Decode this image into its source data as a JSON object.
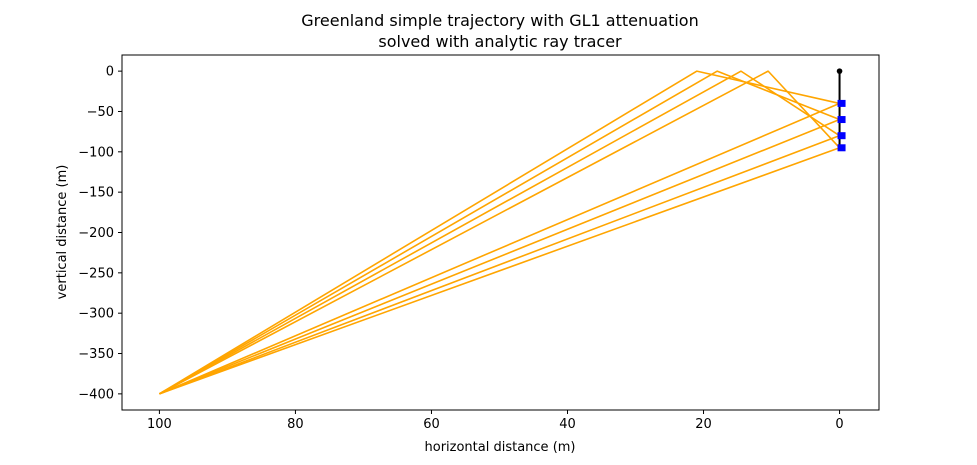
{
  "chart_data": {
    "type": "line",
    "title": "Greenland simple trajectory with GL1 attenuation",
    "subtitle": "solved with analytic ray tracer",
    "xlabel": "horizontal distance (m)",
    "ylabel": "vertical distance (m)",
    "xlim": [
      105.5,
      -5.8
    ],
    "ylim": [
      -420,
      20
    ],
    "x_inverted": true,
    "xticks": [
      100,
      80,
      60,
      40,
      20,
      0
    ],
    "yticks": [
      0,
      -50,
      -100,
      -150,
      -200,
      -250,
      -300,
      -350,
      -400
    ],
    "grid": false,
    "ray_color": "#FFA500",
    "receiver_color": "#0000FF",
    "string_color": "#000000",
    "source": {
      "x": 100,
      "y": -400
    },
    "string": {
      "x": 0,
      "top": 0,
      "bottom": -95
    },
    "receivers": [
      {
        "x": 0,
        "y": -40
      },
      {
        "x": 0,
        "y": -60
      },
      {
        "x": 0,
        "y": -80
      },
      {
        "x": 0,
        "y": -95
      }
    ],
    "series": [
      {
        "points": [
          [
            100,
            -400
          ],
          [
            0,
            -40
          ]
        ]
      },
      {
        "points": [
          [
            100,
            -400
          ],
          [
            0,
            -60
          ]
        ]
      },
      {
        "points": [
          [
            100,
            -400
          ],
          [
            0,
            -80
          ]
        ]
      },
      {
        "points": [
          [
            100,
            -400
          ],
          [
            0,
            -95
          ]
        ]
      },
      {
        "points": [
          [
            100,
            -400
          ],
          [
            21,
            0
          ],
          [
            0,
            -40
          ]
        ]
      },
      {
        "points": [
          [
            100,
            -400
          ],
          [
            18,
            0
          ],
          [
            0,
            -60
          ]
        ]
      },
      {
        "points": [
          [
            100,
            -400
          ],
          [
            14.5,
            0
          ],
          [
            0,
            -80
          ]
        ]
      },
      {
        "points": [
          [
            100,
            -400
          ],
          [
            10.5,
            0
          ],
          [
            0,
            -95
          ]
        ]
      }
    ]
  }
}
